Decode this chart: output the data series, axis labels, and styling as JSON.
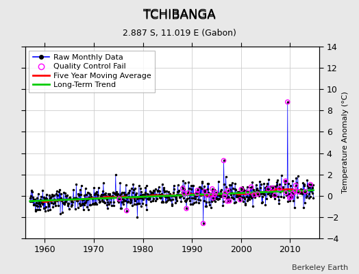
{
  "title": "TCHIBANGA",
  "subtitle": "2.887 S, 11.019 E (Gabon)",
  "ylabel_right": "Temperature Anomaly (°C)",
  "credit": "Berkeley Earth",
  "ylim": [
    -4,
    14
  ],
  "xlim": [
    1956,
    2016
  ],
  "yticks": [
    -4,
    -2,
    0,
    2,
    4,
    6,
    8,
    10,
    12,
    14
  ],
  "xticks": [
    1960,
    1970,
    1980,
    1990,
    2000,
    2010
  ],
  "bg_color": "#e8e8e8",
  "plot_bg_color": "#ffffff",
  "raw_line_color": "#0000ff",
  "raw_marker_color": "#000000",
  "qc_fail_color": "#ff00ff",
  "moving_avg_color": "#ff0000",
  "trend_color": "#00cc00",
  "grid_color": "#cccccc",
  "title_fontsize": 13,
  "subtitle_fontsize": 9,
  "tick_fontsize": 9,
  "legend_fontsize": 8,
  "ylabel_fontsize": 8
}
